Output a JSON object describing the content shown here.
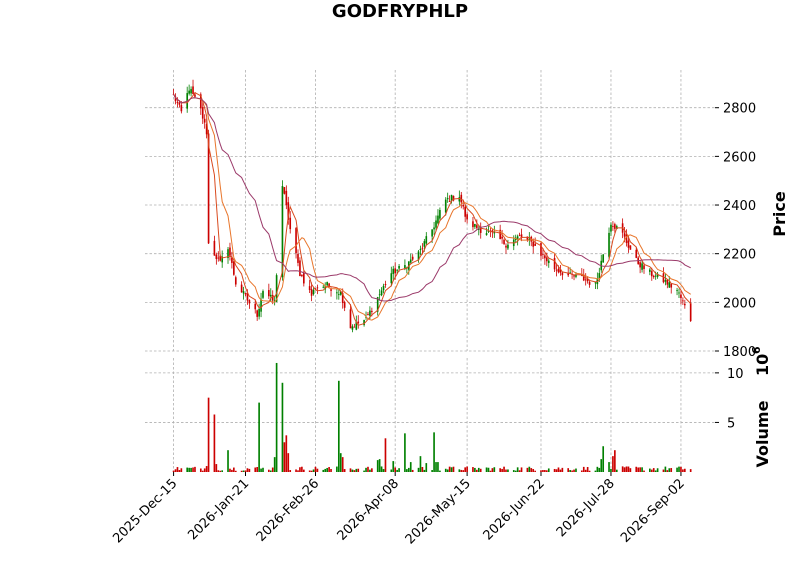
{
  "chart_data": {
    "type": "candlestick",
    "title": "GODFRYPHLP",
    "price_panel": {
      "ylabel": "Price",
      "yticks": [
        1800,
        2000,
        2200,
        2400,
        2600,
        2800
      ],
      "ylim": [
        1800,
        2955
      ],
      "grid": true,
      "axis_side": "right"
    },
    "volume_panel": {
      "ylabel": "Volume",
      "multiplier_label": "10",
      "multiplier_exp": "6",
      "yticks": [
        5,
        10
      ],
      "ylim": [
        0,
        11.5
      ],
      "grid": true,
      "axis_side": "right"
    },
    "xlim": [
      "2025-12-15",
      "2026-09-07"
    ],
    "xticks": [
      "2025-Dec-15",
      "2026-Jan-21",
      "2026-Feb-26",
      "2026-Apr-08",
      "2026-May-15",
      "2026-Jun-22",
      "2026-Jul-28",
      "2026-Sep-02"
    ],
    "up_color": "#008000",
    "down_color": "#cc0000",
    "moving_averages": [
      {
        "color": "#d94a1e"
      },
      {
        "color": "#e8762c"
      },
      {
        "color": "#9b3a6a"
      }
    ],
    "close_anchors": [
      [
        "2025-12-15",
        2850
      ],
      [
        "2025-12-19",
        2780
      ],
      [
        "2025-12-23",
        2880
      ],
      [
        "2025-12-29",
        2790
      ],
      [
        "2026-01-01",
        2700
      ],
      [
        "2026-01-02",
        2240
      ],
      [
        "2026-01-08",
        2160
      ],
      [
        "2026-01-12",
        2230
      ],
      [
        "2026-01-16",
        2080
      ],
      [
        "2026-01-22",
        2010
      ],
      [
        "2026-01-27",
        1950
      ],
      [
        "2026-01-30",
        2050
      ],
      [
        "2026-02-05",
        2000
      ],
      [
        "2026-02-09",
        2480
      ],
      [
        "2026-02-13",
        2300
      ],
      [
        "2026-02-18",
        2120
      ],
      [
        "2026-02-24",
        2030
      ],
      [
        "2026-02-26",
        2060
      ],
      [
        "2026-03-04",
        2070
      ],
      [
        "2026-03-11",
        2040
      ],
      [
        "2026-03-16",
        1900
      ],
      [
        "2026-03-24",
        1930
      ],
      [
        "2026-03-30",
        2020
      ],
      [
        "2026-04-06",
        2120
      ],
      [
        "2026-04-13",
        2150
      ],
      [
        "2026-04-20",
        2200
      ],
      [
        "2026-04-27",
        2300
      ],
      [
        "2026-05-04",
        2420
      ],
      [
        "2026-05-11",
        2440
      ],
      [
        "2026-05-15",
        2330
      ],
      [
        "2026-05-22",
        2300
      ],
      [
        "2026-05-28",
        2280
      ],
      [
        "2026-06-04",
        2240
      ],
      [
        "2026-06-11",
        2270
      ],
      [
        "2026-06-18",
        2240
      ],
      [
        "2026-06-22",
        2200
      ],
      [
        "2026-06-29",
        2140
      ],
      [
        "2026-07-06",
        2110
      ],
      [
        "2026-07-13",
        2100
      ],
      [
        "2026-07-20",
        2070
      ],
      [
        "2026-07-24",
        2200
      ],
      [
        "2026-07-28",
        2330
      ],
      [
        "2026-08-03",
        2280
      ],
      [
        "2026-08-10",
        2170
      ],
      [
        "2026-08-17",
        2120
      ],
      [
        "2026-08-24",
        2090
      ],
      [
        "2026-08-31",
        2050
      ],
      [
        "2026-09-03",
        2000
      ],
      [
        "2026-09-07",
        1930
      ]
    ],
    "volume_anchors": [
      [
        "2026-01-01",
        0.6
      ],
      [
        "2026-01-02",
        7.5
      ],
      [
        "2026-01-05",
        5.8
      ],
      [
        "2026-01-06",
        0.8
      ],
      [
        "2026-01-12",
        2.2
      ],
      [
        "2026-01-28",
        7.0
      ],
      [
        "2026-02-05",
        1.5
      ],
      [
        "2026-02-06",
        11.0
      ],
      [
        "2026-02-09",
        9.0
      ],
      [
        "2026-02-10",
        3.0
      ],
      [
        "2026-02-11",
        3.7
      ],
      [
        "2026-02-12",
        1.9
      ],
      [
        "2026-03-10",
        9.2
      ],
      [
        "2026-03-11",
        1.9
      ],
      [
        "2026-03-12",
        1.5
      ],
      [
        "2026-03-30",
        1.2
      ],
      [
        "2026-03-31",
        1.3
      ],
      [
        "2026-04-03",
        3.4
      ],
      [
        "2026-04-07",
        1.1
      ],
      [
        "2026-04-13",
        3.9
      ],
      [
        "2026-04-16",
        1.0
      ],
      [
        "2026-04-21",
        1.6
      ],
      [
        "2026-04-24",
        0.9
      ],
      [
        "2026-04-28",
        4.0
      ],
      [
        "2026-04-29",
        1.0
      ],
      [
        "2026-04-30",
        1.0
      ],
      [
        "2026-07-23",
        1.3
      ],
      [
        "2026-07-24",
        2.6
      ],
      [
        "2026-07-27",
        1.0
      ],
      [
        "2026-07-29",
        1.6
      ],
      [
        "2026-07-30",
        2.2
      ]
    ]
  }
}
